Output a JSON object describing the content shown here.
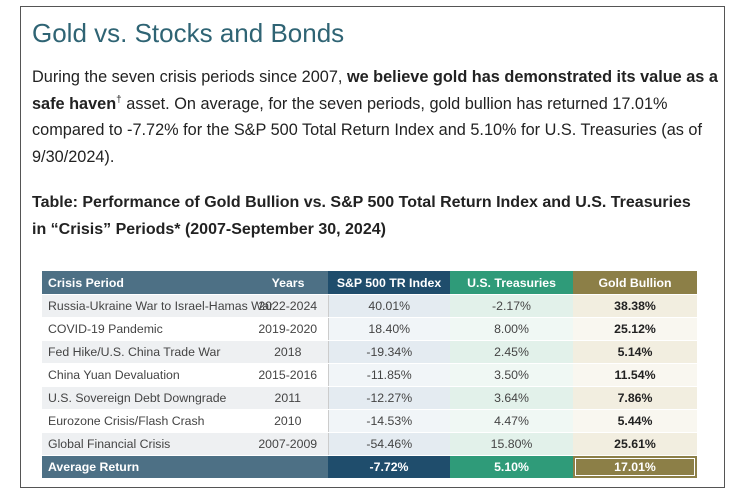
{
  "title": "Gold vs. Stocks and Bonds",
  "intro": {
    "text_start": "During the seven crisis periods since 2007, ",
    "bold": "we believe gold has demonstrated its value as a safe haven",
    "sup": "†",
    "text_end": " asset. On average, for the seven periods, gold bullion has returned 17.01% compared to -7.72% for the S&P 500 Total Return Index and 5.10% for U.S. Treasuries (as of 9/30/2024)."
  },
  "caption": "Table: Performance of Gold Bullion vs. S&P 500 Total Return Index and U.S. Treasuries in “Crisis” Periods* (2007-September 30, 2024)",
  "table": {
    "headers": [
      "Crisis Period",
      "Years",
      "S&P 500 TR Index",
      "U.S. Treasuries",
      "Gold Bullion"
    ],
    "rows": [
      [
        "Russia-Ukraine War to Israel-Hamas War",
        "2022-2024",
        "40.01%",
        "-2.17%",
        "38.38%"
      ],
      [
        "COVID-19 Pandemic",
        "2019-2020",
        "18.40%",
        "8.00%",
        "25.12%"
      ],
      [
        "Fed Hike/U.S. China Trade War",
        "2018",
        "-19.34%",
        "2.45%",
        "5.14%"
      ],
      [
        "China Yuan Devaluation",
        "2015-2016",
        "-11.85%",
        "3.50%",
        "11.54%"
      ],
      [
        "U.S. Sovereign Debt Downgrade",
        "2011",
        "-12.27%",
        "3.64%",
        "7.86%"
      ],
      [
        "Eurozone Crisis/Flash Crash",
        "2010",
        "-14.53%",
        "4.47%",
        "5.44%"
      ],
      [
        "Global Financial Crisis",
        "2007-2009",
        "-54.46%",
        "15.80%",
        "25.61%"
      ]
    ],
    "footer": [
      "Average Return",
      "-7.72%",
      "5.10%",
      "17.01%"
    ]
  }
}
